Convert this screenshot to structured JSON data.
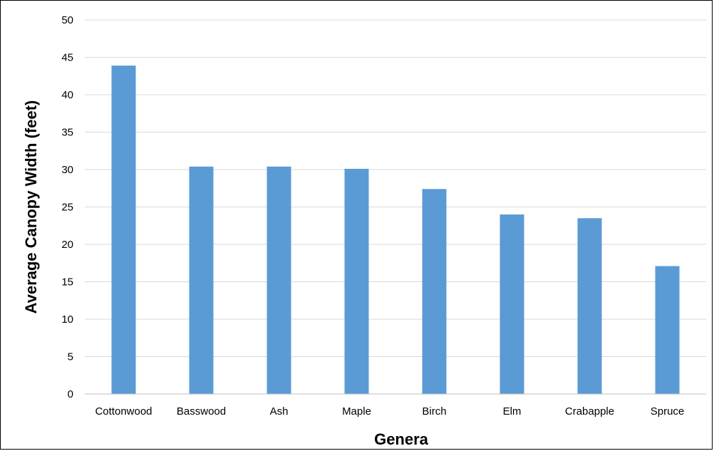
{
  "chart_data": {
    "type": "bar",
    "title": "",
    "xlabel": "Genera",
    "ylabel": "Average Canopy Width (feet)",
    "categories": [
      "Cottonwood",
      "Basswood",
      "Ash",
      "Maple",
      "Birch",
      "Elm",
      "Crabapple",
      "Spruce"
    ],
    "values": [
      43.9,
      30.4,
      30.4,
      30.1,
      27.4,
      24.0,
      23.5,
      17.1
    ],
    "ylim": [
      0,
      50
    ],
    "yticks": [
      0,
      5,
      10,
      15,
      20,
      25,
      30,
      35,
      40,
      45,
      50
    ],
    "grid": "horizontal",
    "legend": "none",
    "bar_color": "#5B9BD5",
    "grid_color": "#D9D9D9",
    "axis_color": "#BFBFBF"
  }
}
